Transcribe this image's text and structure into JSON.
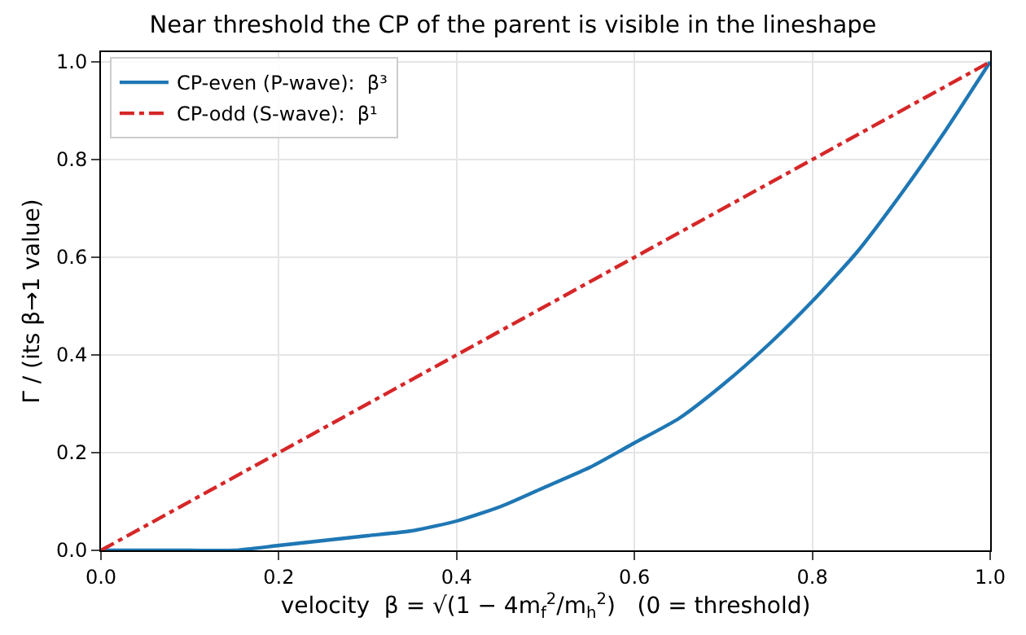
{
  "chart_data": {
    "type": "line",
    "title": "Near threshold the CP of the parent is visible in the lineshape",
    "xlabel": "velocity  β = √(1 − 4m$_{f}$$^{2}$/m$_{h}$$^{2}$)   (0 = threshold)",
    "ylabel": "Γ / (its β→1 value)",
    "series": [
      {
        "name": "CP-even (P-wave):  β³",
        "color": "#1f77b4",
        "line_style": "solid",
        "x": [
          0,
          0.05,
          0.1,
          0.15,
          0.2,
          0.25,
          0.3,
          0.35,
          0.4,
          0.45,
          0.5,
          0.55,
          0.6,
          0.65,
          0.7,
          0.75,
          0.8,
          0.85,
          0.9,
          0.95,
          1
        ],
        "values": [
          0,
          0,
          0,
          0,
          0.01,
          0.02,
          0.03,
          0.04,
          0.06,
          0.09,
          0.13,
          0.17,
          0.22,
          0.27,
          0.34,
          0.42,
          0.51,
          0.61,
          0.73,
          0.86,
          1
        ]
      },
      {
        "name": "CP-odd (S-wave):  β¹",
        "color": "#d62728",
        "line_style": "dashdot",
        "x": [
          0,
          1
        ],
        "values": [
          0,
          1
        ]
      }
    ],
    "xlim": [
      0,
      1
    ],
    "xticks": [
      {
        "value": 0,
        "label": "0.0"
      },
      {
        "value": 0.2,
        "label": "0.2"
      },
      {
        "value": 0.4,
        "label": "0.4"
      },
      {
        "value": 0.6,
        "label": "0.6"
      },
      {
        "value": 0.8,
        "label": "0.8"
      },
      {
        "value": 1,
        "label": "1.0"
      }
    ],
    "ylim": [
      0,
      1.02
    ],
    "yticks": [
      {
        "value": 0,
        "label": "0.0"
      },
      {
        "value": 0.2,
        "label": "0.2"
      },
      {
        "value": 0.4,
        "label": "0.4"
      },
      {
        "value": 0.6,
        "label": "0.6"
      },
      {
        "value": 0.8,
        "label": "0.8"
      },
      {
        "value": 1,
        "label": "1.0"
      }
    ],
    "grid": true,
    "legend": "top left",
    "marker": "none"
  }
}
